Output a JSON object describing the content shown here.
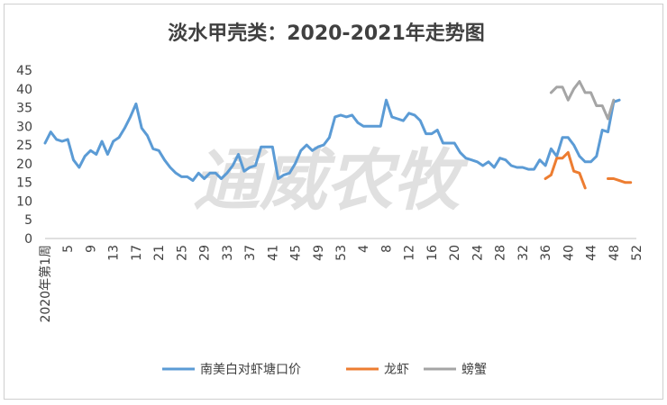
{
  "chart_data": {
    "type": "line",
    "title": "淡水甲壳类：2020-2021年走势图",
    "watermark": "通威农牧",
    "ylim": [
      0,
      45
    ],
    "yticks": [
      0,
      5,
      10,
      15,
      20,
      25,
      30,
      35,
      40,
      45
    ],
    "xticks": [
      {
        "i": 0,
        "label": "2020年第1周"
      },
      {
        "i": 4,
        "label": "5"
      },
      {
        "i": 8,
        "label": "9"
      },
      {
        "i": 12,
        "label": "13"
      },
      {
        "i": 16,
        "label": "17"
      },
      {
        "i": 20,
        "label": "21"
      },
      {
        "i": 24,
        "label": "25"
      },
      {
        "i": 28,
        "label": "29"
      },
      {
        "i": 32,
        "label": "33"
      },
      {
        "i": 36,
        "label": "37"
      },
      {
        "i": 40,
        "label": "41"
      },
      {
        "i": 44,
        "label": "45"
      },
      {
        "i": 48,
        "label": "49"
      },
      {
        "i": 52,
        "label": "53"
      },
      {
        "i": 56,
        "label": "4"
      },
      {
        "i": 60,
        "label": "8"
      },
      {
        "i": 64,
        "label": "12"
      },
      {
        "i": 68,
        "label": "16"
      },
      {
        "i": 72,
        "label": "20"
      },
      {
        "i": 76,
        "label": "24"
      },
      {
        "i": 80,
        "label": "28"
      },
      {
        "i": 84,
        "label": "32"
      },
      {
        "i": 88,
        "label": "36"
      },
      {
        "i": 92,
        "label": "40"
      },
      {
        "i": 96,
        "label": "44"
      },
      {
        "i": 100,
        "label": "48"
      },
      {
        "i": 104,
        "label": "52"
      }
    ],
    "x_count": 105,
    "grid": false,
    "legend_position": "bottom",
    "series": [
      {
        "name": "南美白对虾塘口价",
        "color": "#5b9bd5",
        "start": 0,
        "values": [
          25.5,
          28.5,
          26.5,
          26,
          26.5,
          21,
          19,
          22,
          23.5,
          22.5,
          26,
          22.5,
          26,
          27,
          29.5,
          32.5,
          36,
          29.5,
          27.5,
          24,
          23.5,
          21,
          19,
          17.5,
          16.5,
          16.5,
          15.5,
          17.5,
          16,
          17.5,
          17.5,
          16,
          17.5,
          19.5,
          22.5,
          18,
          19,
          19.5,
          24.5,
          24.5,
          24.5,
          16,
          17,
          17.5,
          20,
          23.5,
          25,
          23.5,
          24.5,
          25,
          27,
          32.5,
          33,
          32.5,
          33,
          31,
          30,
          30,
          30,
          30,
          37,
          32.5,
          32,
          31.5,
          33.5,
          33,
          31.5,
          28,
          28,
          29,
          25.5,
          25.5,
          25.5,
          23,
          21.5,
          21,
          20.5,
          19.5,
          20.5,
          19,
          21.5,
          21,
          19.5,
          19,
          19,
          18.5,
          18.5,
          21,
          19.5,
          24,
          22,
          27,
          27,
          25,
          22,
          20.5,
          20.5,
          22,
          29,
          28.5,
          36.5,
          37
        ]
      },
      {
        "name": "龙虾",
        "color": "#ed7d31",
        "start": 88,
        "values": [
          16,
          17,
          21.5,
          21.5,
          23,
          18,
          17.5,
          13.5,
          null,
          null,
          null,
          16,
          16,
          15.5,
          15,
          15
        ]
      },
      {
        "name": "螃蟹",
        "color": "#a5a5a5",
        "start": 89,
        "values": [
          39,
          40.5,
          40.5,
          37,
          40,
          42,
          39,
          39,
          35.5,
          35.5,
          32,
          37
        ]
      }
    ]
  }
}
